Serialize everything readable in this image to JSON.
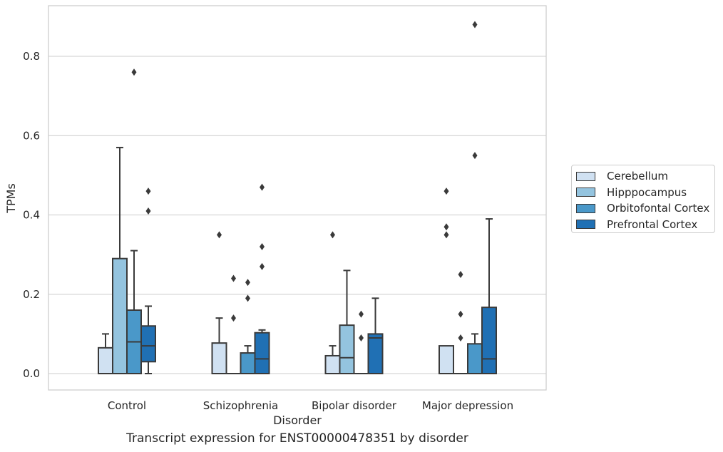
{
  "chart_data": {
    "type": "box",
    "xlabel": "Disorder",
    "ylabel": "TPMs",
    "caption": "Transcript expression for ENST00000478351 by disorder",
    "categories": [
      "Control",
      "Schizophrenia",
      "Bipolar disorder",
      "Major depression"
    ],
    "ylim": [
      -0.04,
      0.93
    ],
    "yticks": [
      0.0,
      0.2,
      0.4,
      0.6,
      0.8
    ],
    "ytick_labels": [
      "0.0",
      "0.2",
      "0.4",
      "0.6",
      "0.8"
    ],
    "grid": true,
    "legend_position": "right",
    "series": [
      {
        "name": "Cerebellum",
        "color": "#d0e1f2",
        "boxes": [
          {
            "q1": 0.0,
            "median": 0.0,
            "q3": 0.065,
            "whisker_low": 0.0,
            "whisker_high": 0.1,
            "outliers": []
          },
          {
            "q1": 0.0,
            "median": 0.0,
            "q3": 0.077,
            "whisker_low": 0.0,
            "whisker_high": 0.14,
            "outliers": [
              0.35
            ]
          },
          {
            "q1": 0.0,
            "median": 0.0,
            "q3": 0.045,
            "whisker_low": 0.0,
            "whisker_high": 0.07,
            "outliers": [
              0.35
            ]
          },
          {
            "q1": 0.0,
            "median": 0.0,
            "q3": 0.07,
            "whisker_low": 0.0,
            "whisker_high": 0.07,
            "outliers": [
              0.46,
              0.37,
              0.35
            ]
          }
        ]
      },
      {
        "name": "Hipppocampus",
        "color": "#94c4df",
        "boxes": [
          {
            "q1": 0.0,
            "median": 0.0,
            "q3": 0.29,
            "whisker_low": 0.0,
            "whisker_high": 0.57,
            "outliers": []
          },
          {
            "q1": 0.0,
            "median": 0.0,
            "q3": 0.0,
            "whisker_low": 0.0,
            "whisker_high": 0.0,
            "outliers": [
              0.24,
              0.14
            ]
          },
          {
            "q1": 0.0,
            "median": 0.04,
            "q3": 0.122,
            "whisker_low": 0.0,
            "whisker_high": 0.26,
            "outliers": []
          },
          {
            "q1": 0.0,
            "median": 0.0,
            "q3": 0.0,
            "whisker_low": 0.0,
            "whisker_high": 0.0,
            "outliers": [
              0.25,
              0.15,
              0.09
            ]
          }
        ]
      },
      {
        "name": "Orbitofontal Cortex",
        "color": "#4a98c9",
        "boxes": [
          {
            "q1": 0.0,
            "median": 0.08,
            "q3": 0.16,
            "whisker_low": 0.0,
            "whisker_high": 0.31,
            "outliers": [
              0.76
            ]
          },
          {
            "q1": 0.0,
            "median": 0.0,
            "q3": 0.052,
            "whisker_low": 0.0,
            "whisker_high": 0.07,
            "outliers": [
              0.23,
              0.19
            ]
          },
          {
            "q1": 0.0,
            "median": 0.0,
            "q3": 0.0,
            "whisker_low": 0.0,
            "whisker_high": 0.0,
            "outliers": [
              0.15,
              0.09
            ]
          },
          {
            "q1": 0.0,
            "median": 0.0,
            "q3": 0.075,
            "whisker_low": 0.0,
            "whisker_high": 0.1,
            "outliers": [
              0.88,
              0.55
            ]
          }
        ]
      },
      {
        "name": "Prefrontal Cortex",
        "color": "#2070b4",
        "boxes": [
          {
            "q1": 0.03,
            "median": 0.07,
            "q3": 0.12,
            "whisker_low": 0.0,
            "whisker_high": 0.17,
            "outliers": [
              0.46,
              0.41
            ]
          },
          {
            "q1": 0.0,
            "median": 0.037,
            "q3": 0.103,
            "whisker_low": 0.0,
            "whisker_high": 0.11,
            "outliers": [
              0.47,
              0.32,
              0.27
            ]
          },
          {
            "q1": 0.0,
            "median": 0.09,
            "q3": 0.1,
            "whisker_low": 0.0,
            "whisker_high": 0.19,
            "outliers": []
          },
          {
            "q1": 0.0,
            "median": 0.037,
            "q3": 0.167,
            "whisker_low": 0.0,
            "whisker_high": 0.39,
            "outliers": []
          }
        ]
      }
    ]
  }
}
